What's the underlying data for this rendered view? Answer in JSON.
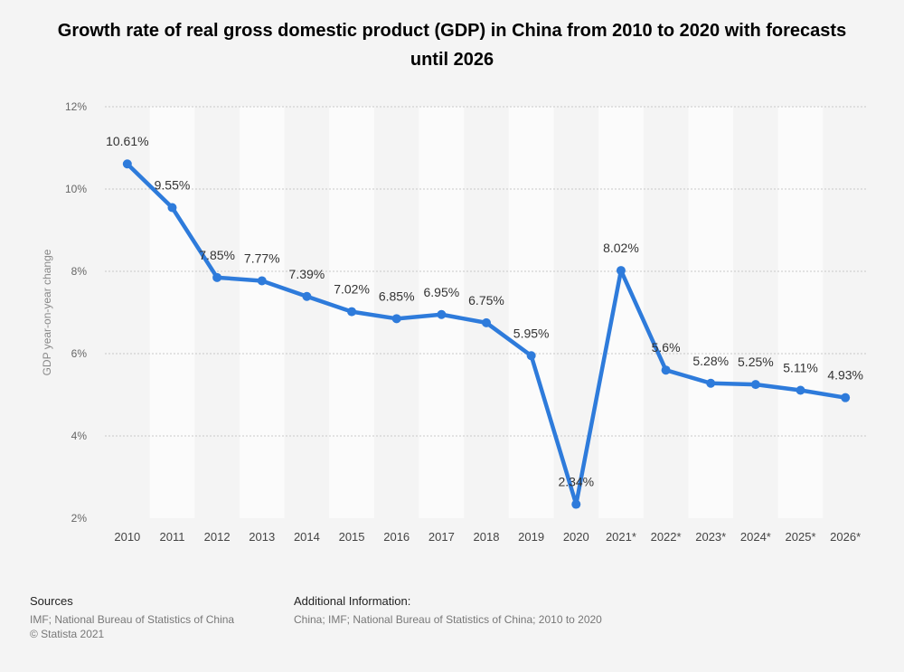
{
  "title": "Growth rate of real gross domestic product (GDP) in China from 2010 to 2020 with forecasts until 2026",
  "chart_data": {
    "type": "line",
    "categories": [
      "2010",
      "2011",
      "2012",
      "2013",
      "2014",
      "2015",
      "2016",
      "2017",
      "2018",
      "2019",
      "2020",
      "2021*",
      "2022*",
      "2023*",
      "2024*",
      "2025*",
      "2026*"
    ],
    "series": [
      {
        "values": [
          10.61,
          9.55,
          7.85,
          7.77,
          7.39,
          7.02,
          6.85,
          6.95,
          6.75,
          5.95,
          2.34,
          8.02,
          5.6,
          5.28,
          5.25,
          5.11,
          4.93
        ],
        "labels": [
          "10.61%",
          "9.55%",
          "7.85%",
          "7.77%",
          "7.39%",
          "7.02%",
          "6.85%",
          "6.95%",
          "6.75%",
          "5.95%",
          "2.34%",
          "8.02%",
          "5.6%",
          "5.28%",
          "5.25%",
          "5.11%",
          "4.93%"
        ]
      }
    ],
    "ylabel": "GDP year-on-year change",
    "xlabel": "",
    "ylim": [
      2,
      12
    ],
    "yticks": [
      2,
      4,
      6,
      8,
      10,
      12
    ],
    "ytick_labels": [
      "2%",
      "4%",
      "6%",
      "8%",
      "10%",
      "12%"
    ],
    "grid": true,
    "colors": {
      "line": "#2e7bdb",
      "band": "#fbfbfb",
      "background": "#f4f4f4",
      "grid": "#c8c8c8"
    }
  },
  "footer": {
    "sources_heading": "Sources",
    "sources_line1": "IMF; National Bureau of Statistics of China",
    "sources_line2": "© Statista 2021",
    "additional_heading": "Additional Information:",
    "additional_line1": "China; IMF; National Bureau of Statistics of China; 2010 to 2020"
  }
}
